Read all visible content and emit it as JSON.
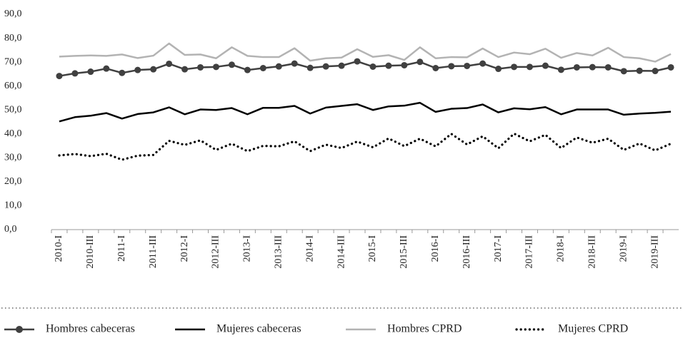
{
  "chart_data": {
    "type": "line",
    "categories": [
      "2010-I",
      null,
      "2010-III",
      null,
      "2011-I",
      null,
      "2011-III",
      null,
      "2012-I",
      null,
      "2012-III",
      null,
      "2013-I",
      null,
      "2013-III",
      null,
      "2014-I",
      null,
      "2014-III",
      null,
      "2015-I",
      null,
      "2015-III",
      null,
      "2016-I",
      null,
      "2016-III",
      null,
      "2017-I",
      null,
      "2017-III",
      null,
      "2018-I",
      null,
      "2018-III",
      null,
      "2019-I",
      null,
      "2019-III",
      null
    ],
    "series": [
      {
        "name": "Hombres cabeceras",
        "color": "#404040",
        "line_style": "solid",
        "marker": true,
        "values": [
          64.2,
          65.3,
          66.0,
          67.3,
          65.5,
          66.7,
          67.0,
          69.3,
          67.0,
          67.8,
          68.0,
          68.9,
          66.7,
          67.5,
          68.2,
          69.4,
          67.6,
          68.2,
          68.5,
          70.3,
          68.1,
          68.5,
          68.7,
          70.1,
          67.5,
          68.3,
          68.4,
          69.4,
          67.2,
          68.0,
          68.0,
          68.5,
          66.8,
          67.8,
          67.9,
          67.8,
          66.2,
          66.4,
          66.3,
          67.8
        ]
      },
      {
        "name": "Mujeres cabeceras",
        "color": "#000000",
        "line_style": "solid",
        "marker": false,
        "values": [
          45.2,
          47.0,
          47.6,
          48.7,
          46.4,
          48.3,
          49.0,
          51.1,
          48.2,
          50.2,
          50.0,
          50.8,
          48.2,
          50.9,
          50.9,
          51.7,
          48.5,
          51.0,
          51.7,
          52.4,
          50.0,
          51.5,
          51.8,
          53.0,
          49.2,
          50.5,
          50.8,
          52.3,
          49.0,
          50.7,
          50.3,
          51.2,
          48.2,
          50.2,
          50.2,
          50.2,
          48.0,
          48.5,
          48.8,
          49.3
        ]
      },
      {
        "name": "Hombres CPRD",
        "color": "#b3b3b3",
        "line_style": "solid",
        "marker": false,
        "values": [
          72.3,
          72.6,
          72.8,
          72.6,
          73.2,
          71.7,
          72.7,
          77.8,
          73.0,
          73.2,
          71.6,
          76.2,
          72.6,
          72.1,
          72.1,
          75.8,
          70.6,
          71.6,
          71.9,
          75.4,
          72.2,
          72.9,
          70.9,
          76.2,
          71.6,
          72.1,
          72.0,
          75.7,
          72.1,
          74.0,
          73.3,
          75.6,
          71.8,
          73.8,
          72.8,
          76.0,
          72.1,
          71.6,
          70.2,
          73.4
        ]
      },
      {
        "name": "Mujeres CPRD",
        "color": "#000000",
        "line_style": "dotted",
        "marker": false,
        "values": [
          31.0,
          31.6,
          30.7,
          31.7,
          29.2,
          30.9,
          31.2,
          37.1,
          35.4,
          37.3,
          33.3,
          35.9,
          32.8,
          35.0,
          34.8,
          36.9,
          32.8,
          35.5,
          34.1,
          36.8,
          34.4,
          38.1,
          34.9,
          38.0,
          34.8,
          40.0,
          35.6,
          39.0,
          34.0,
          40.1,
          36.9,
          39.6,
          34.1,
          38.5,
          36.3,
          38.0,
          33.3,
          36.0,
          33.1,
          35.9
        ]
      }
    ],
    "ylim": [
      0,
      90
    ],
    "yticks": [
      {
        "value": 0,
        "label": "0,0"
      },
      {
        "value": 10,
        "label": "10,0"
      },
      {
        "value": 20,
        "label": "20,0"
      },
      {
        "value": 30,
        "label": "30,0"
      },
      {
        "value": 40,
        "label": "40,0"
      },
      {
        "value": 50,
        "label": "50,0"
      },
      {
        "value": 60,
        "label": "60,0"
      },
      {
        "value": 70,
        "label": "70,0"
      },
      {
        "value": 80,
        "label": "80,0"
      },
      {
        "value": 90,
        "label": "90,0"
      }
    ],
    "grid": false
  }
}
